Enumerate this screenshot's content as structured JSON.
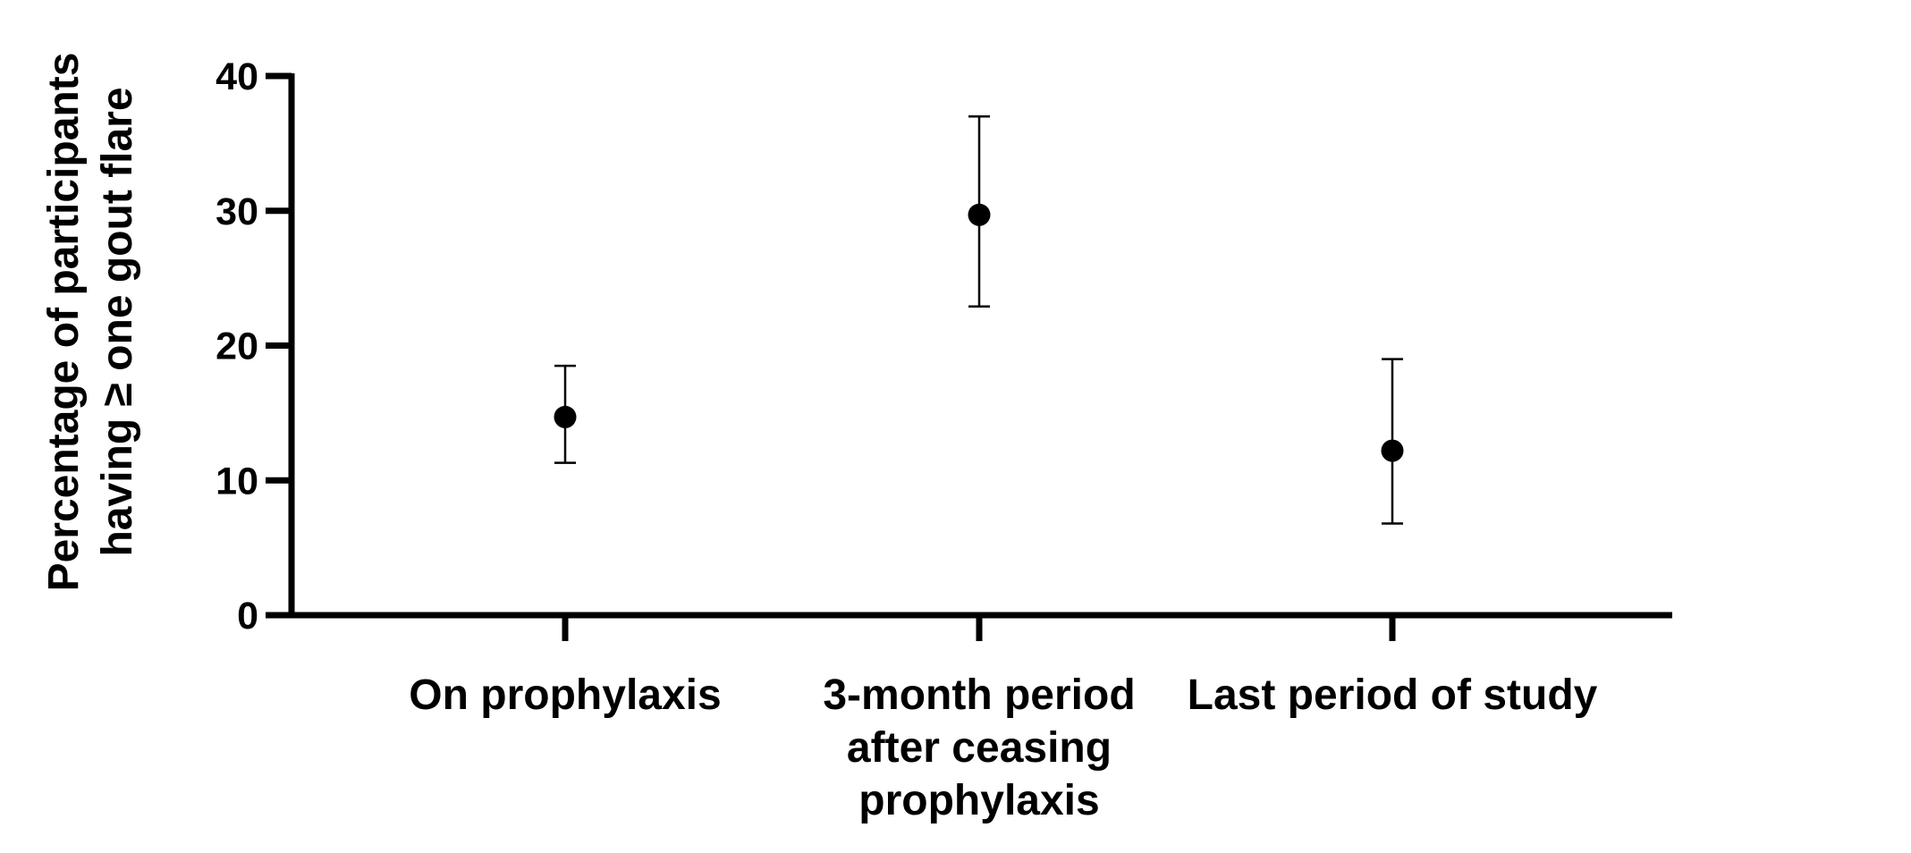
{
  "chart_data": {
    "type": "scatter",
    "ylabel_lines": [
      "Percentage of participants",
      "having ≥ one gout flare"
    ],
    "ylim": [
      0,
      40
    ],
    "yticks": [
      0,
      10,
      20,
      30,
      40
    ],
    "ytick_labels": [
      "0",
      "10",
      "20",
      "30",
      "40"
    ],
    "grid": false,
    "categories": [
      [
        "On prophylaxis"
      ],
      [
        "3-month period",
        "after ceasing",
        "prophylaxis"
      ],
      [
        "Last period of study"
      ]
    ],
    "values": [
      14.7,
      29.7,
      12.2
    ],
    "error_low": [
      11.3,
      22.9,
      6.8
    ],
    "error_high": [
      18.5,
      37.0,
      19.0
    ],
    "colors": {
      "marker": "#000000",
      "axis": "#000000"
    }
  }
}
